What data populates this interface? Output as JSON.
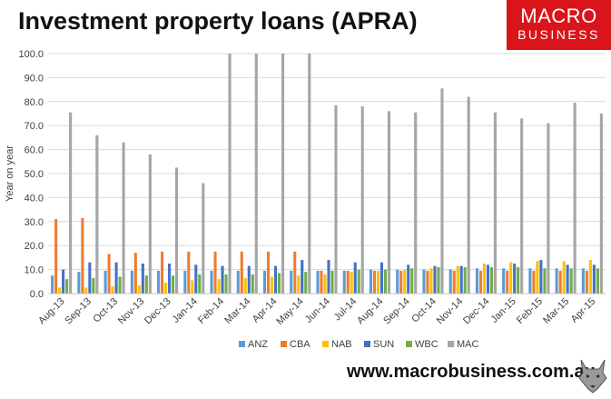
{
  "title": "Investment property loans (APRA)",
  "logo": {
    "line1": "MACRO",
    "line2": "BUSINESS"
  },
  "footer": "www.macrobusiness.com.au",
  "chart_data": {
    "type": "bar",
    "ylabel": "Year on year",
    "ylim": [
      0,
      100
    ],
    "yticks": [
      "0.0",
      "10.0",
      "20.0",
      "30.0",
      "40.0",
      "50.0",
      "60.0",
      "70.0",
      "80.0",
      "90.0",
      "100.0"
    ],
    "grid": true,
    "legend": "bottom",
    "categories": [
      "Aug-13",
      "Sep-13",
      "Oct-13",
      "Nov-13",
      "Dec-13",
      "Jan-14",
      "Feb-14",
      "Mar-14",
      "Apr-14",
      "May-14",
      "Jun-14",
      "Jul-14",
      "Aug-14",
      "Sep-14",
      "Oct-14",
      "Nov-14",
      "Dec-14",
      "Jan-15",
      "Feb-15",
      "Mar-15",
      "Apr-15"
    ],
    "series": [
      {
        "name": "ANZ",
        "color": "#5b9bd5",
        "values": [
          7.5,
          9,
          9.5,
          9.5,
          9.5,
          9.5,
          9.5,
          9.5,
          9.5,
          9.5,
          9.5,
          9.5,
          10,
          10,
          10,
          10,
          10.5,
          10.5,
          10.5,
          10.5,
          10.5
        ]
      },
      {
        "name": "CBA",
        "color": "#ed7d31",
        "values": [
          31,
          31.5,
          16.5,
          17,
          17.5,
          17.5,
          17.5,
          17.5,
          17.5,
          17.5,
          9.5,
          9.5,
          9.5,
          9.5,
          9.5,
          9.5,
          9.5,
          9.5,
          9.5,
          9.5,
          9.5
        ]
      },
      {
        "name": "NAB",
        "color": "#ffc000",
        "values": [
          2.5,
          2.5,
          3,
          3.5,
          4.5,
          5.5,
          6,
          6.5,
          7,
          7.5,
          8,
          9,
          9.5,
          10,
          10.5,
          11.5,
          12.5,
          13,
          13.5,
          13.5,
          14
        ]
      },
      {
        "name": "SUN",
        "color": "#4472c4",
        "values": [
          10,
          13,
          13,
          12.5,
          12.5,
          12,
          11.5,
          11.5,
          11.5,
          14,
          14,
          13,
          13,
          12,
          11.5,
          11.5,
          12,
          12.5,
          14,
          12,
          12
        ]
      },
      {
        "name": "WBC",
        "color": "#70ad47",
        "values": [
          6,
          6.5,
          7,
          7.5,
          7.5,
          8,
          8,
          8,
          8.5,
          9,
          9.5,
          10,
          10,
          10.5,
          11,
          11,
          11,
          11,
          10.5,
          10.5,
          10.5
        ]
      },
      {
        "name": "MAC",
        "color": "#a5a5a5",
        "values": [
          75.5,
          66,
          63,
          58,
          52.5,
          46,
          100,
          100,
          100,
          100,
          78.5,
          78,
          76,
          75.5,
          85.5,
          82,
          75.5,
          73,
          71,
          79.5,
          75
        ]
      }
    ]
  }
}
